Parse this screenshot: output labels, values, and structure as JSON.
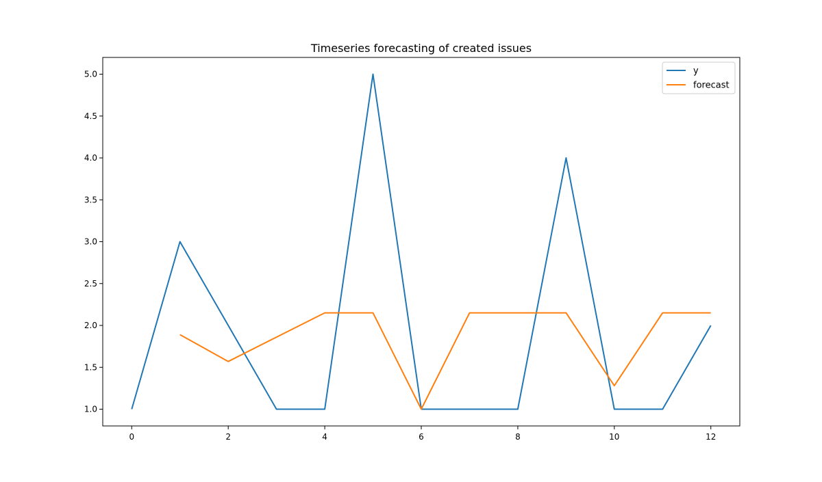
{
  "chart_data": {
    "type": "line",
    "title": "Timeseries forecasting of created issues",
    "xlabel": "",
    "ylabel": "",
    "xlim": [
      -0.6,
      12.6
    ],
    "ylim": [
      0.8,
      5.2
    ],
    "x_ticks": [
      0,
      2,
      4,
      6,
      8,
      10,
      12
    ],
    "x_tick_labels": [
      "0",
      "2",
      "4",
      "6",
      "8",
      "10",
      "12"
    ],
    "y_ticks": [
      1.0,
      1.5,
      2.0,
      2.5,
      3.0,
      3.5,
      4.0,
      4.5,
      5.0
    ],
    "y_tick_labels": [
      "1.0",
      "1.5",
      "2.0",
      "2.5",
      "3.0",
      "3.5",
      "4.0",
      "4.5",
      "5.0"
    ],
    "grid": false,
    "legend_position": "top-right",
    "series": [
      {
        "name": "y",
        "color": "#1f77b4",
        "x": [
          0,
          1,
          2,
          3,
          4,
          5,
          6,
          7,
          8,
          9,
          10,
          11,
          12
        ],
        "values": [
          1,
          3,
          2,
          1,
          1,
          5,
          1,
          1,
          1,
          4,
          1,
          1,
          2
        ]
      },
      {
        "name": "forecast",
        "color": "#ff7f0e",
        "x": [
          1,
          2,
          3,
          4,
          5,
          6,
          7,
          8,
          9,
          10,
          11,
          12
        ],
        "values": [
          1.89,
          1.57,
          1.86,
          2.15,
          2.15,
          1.0,
          2.15,
          2.15,
          2.15,
          1.28,
          2.15,
          2.15
        ]
      }
    ]
  }
}
